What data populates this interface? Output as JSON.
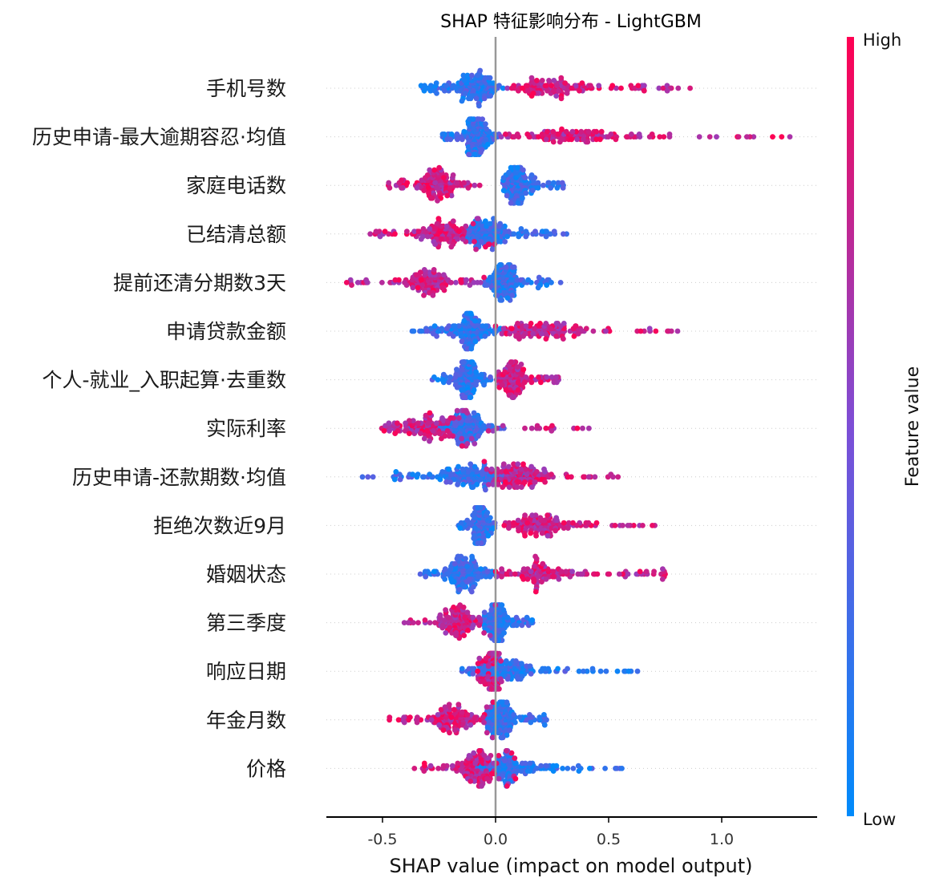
{
  "chart_data": {
    "type": "scatter",
    "subtype": "shap-beeswarm",
    "title": "SHAP 特征影响分布 - LightGBM",
    "xlabel": "SHAP value (impact on model output)",
    "xlim": [
      -0.75,
      1.42
    ],
    "xticks": [
      -0.5,
      0.0,
      0.5,
      1.0
    ],
    "xtick_labels": [
      "-0.5",
      "0.0",
      "0.5",
      "1.0"
    ],
    "zero_line": 0.0,
    "colorbar": {
      "title": "Feature value",
      "high_label": "High",
      "low_label": "Low",
      "low_color": "#008bfb",
      "high_color": "#ff0052"
    },
    "features": [
      {
        "name": "手机号数",
        "low_range": [
          -0.33,
          0.05
        ],
        "high_range": [
          0.05,
          0.87
        ],
        "high_on_right": true
      },
      {
        "name": "历史申请-最大逾期容忍·均值",
        "low_range": [
          -0.24,
          0.02
        ],
        "high_range": [
          0.02,
          1.32
        ],
        "high_on_right": true
      },
      {
        "name": "家庭电话数",
        "low_range": [
          0.03,
          0.3
        ],
        "high_range": [
          -0.52,
          -0.07
        ],
        "high_on_right": false
      },
      {
        "name": "已结清总额",
        "low_range": [
          -0.15,
          0.32
        ],
        "high_range": [
          -0.6,
          0.0
        ],
        "high_on_right": false
      },
      {
        "name": "提前还清分期数3天",
        "low_range": [
          -0.05,
          0.3
        ],
        "high_range": [
          -0.66,
          -0.05
        ],
        "high_on_right": false
      },
      {
        "name": "申请贷款金额",
        "low_range": [
          -0.37,
          0.05
        ],
        "high_range": [
          0.0,
          0.82
        ],
        "high_on_right": true
      },
      {
        "name": "个人-就业_入职起算·去重数",
        "low_range": [
          -0.29,
          -0.02
        ],
        "high_range": [
          0.0,
          0.28
        ],
        "high_on_right": true
      },
      {
        "name": "实际利率",
        "low_range": [
          -0.4,
          0.05
        ],
        "high_range": [
          -0.53,
          0.43
        ],
        "high_on_right": true
      },
      {
        "name": "历史申请-还款期数·均值",
        "low_range": [
          -0.6,
          0.2
        ],
        "high_range": [
          -0.05,
          0.55
        ],
        "high_on_right": true
      },
      {
        "name": "拒绝次数近9月",
        "low_range": [
          -0.17,
          0.0
        ],
        "high_range": [
          0.03,
          0.71
        ],
        "high_on_right": true
      },
      {
        "name": "婚姻状态",
        "low_range": [
          -0.34,
          0.0
        ],
        "high_range": [
          0.0,
          0.75
        ],
        "high_on_right": true
      },
      {
        "name": "第三季度",
        "low_range": [
          -0.05,
          0.17
        ],
        "high_range": [
          -0.42,
          0.0
        ],
        "high_on_right": false
      },
      {
        "name": "响应日期",
        "low_range": [
          -0.15,
          0.65
        ],
        "high_range": [
          -0.08,
          0.03
        ],
        "high_on_right": false
      },
      {
        "name": "年金月数",
        "low_range": [
          -0.05,
          0.23
        ],
        "high_range": [
          -0.48,
          0.0
        ],
        "high_on_right": false
      },
      {
        "name": "价格",
        "low_range": [
          -0.1,
          0.58
        ],
        "high_range": [
          -0.36,
          0.1
        ],
        "high_on_right": false
      }
    ]
  }
}
